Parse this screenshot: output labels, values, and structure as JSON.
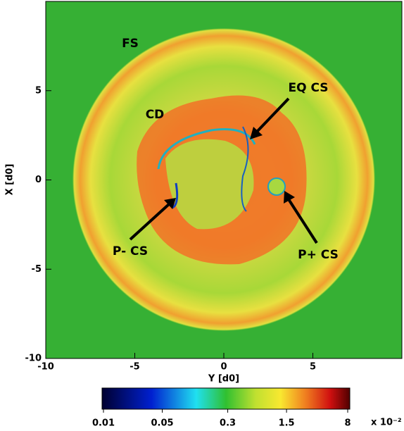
{
  "chart_data": {
    "type": "image",
    "xlabel": "Y  [d0]",
    "ylabel": "X  [d0]",
    "xlim": [
      -10,
      10
    ],
    "ylim": [
      -10,
      10
    ],
    "xticks": [
      -10,
      -5,
      0,
      5
    ],
    "yticks": [
      -10,
      -5,
      0,
      5
    ],
    "annotations": [
      {
        "text": "FS"
      },
      {
        "text": "CD"
      },
      {
        "text": "EQ CS"
      },
      {
        "text": "P- CS"
      },
      {
        "text": "P+ CS"
      }
    ],
    "colorbar": {
      "scale": "log",
      "lim": [
        0.01,
        8
      ],
      "ticks": [
        0.01,
        0.05,
        0.3,
        1.5,
        8
      ],
      "label": "x 10⁻²"
    }
  }
}
